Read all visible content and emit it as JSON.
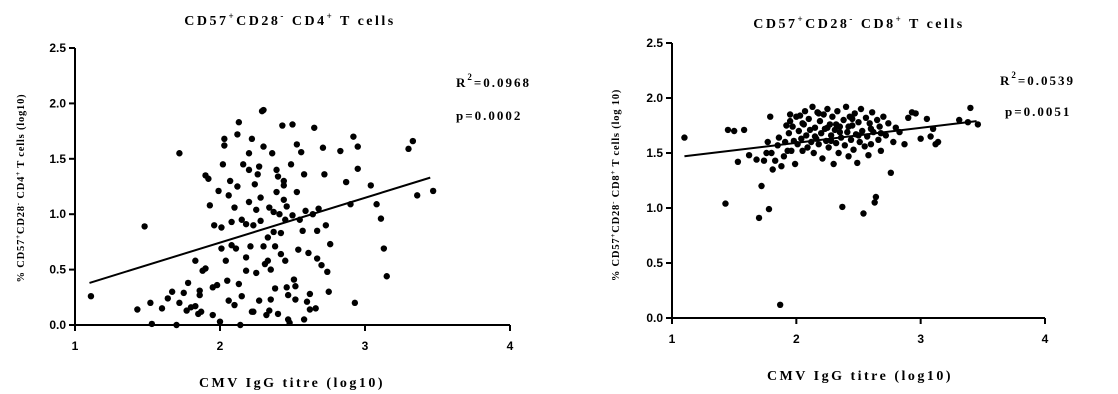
{
  "chart_data": [
    {
      "type": "scatter",
      "title": {
        "a": "CD57",
        "a_sup": "+",
        "b": "CD28",
        "b_sup": "-",
        "c": " CD4",
        "c_sup": "+",
        "d": " T cells"
      },
      "xlabel": "CMV IgG titre (log10)",
      "ylabel": {
        "a": "% CD57",
        "a_sup": "+",
        "b": "CD28",
        "b_sup": "-",
        "c": " CD4",
        "c_sup": "+",
        "d": " T cells (log10)"
      },
      "xlim": [
        1,
        4
      ],
      "ylim": [
        0,
        2.5
      ],
      "xticks": [
        "1",
        "2",
        "3",
        "4"
      ],
      "yticks": [
        "0.0",
        "0.5",
        "1.0",
        "1.5",
        "2.0",
        "2.5"
      ],
      "stats": {
        "r2_label": "R",
        "r2_sup": "2",
        "r2_value": "=0.0968",
        "p_text": "p=0.0002"
      },
      "regression": {
        "x": [
          1.1,
          3.45
        ],
        "y": [
          0.38,
          1.33
        ]
      },
      "points": [
        [
          1.11,
          0.26
        ],
        [
          1.43,
          0.14
        ],
        [
          1.48,
          0.89
        ],
        [
          1.52,
          0.2
        ],
        [
          1.53,
          0.01
        ],
        [
          1.6,
          0.15
        ],
        [
          1.64,
          0.24
        ],
        [
          1.67,
          0.3
        ],
        [
          1.7,
          0.0
        ],
        [
          1.72,
          1.55
        ],
        [
          1.72,
          0.2
        ],
        [
          1.75,
          0.29
        ],
        [
          1.77,
          0.13
        ],
        [
          1.78,
          0.38
        ],
        [
          1.8,
          0.16
        ],
        [
          1.83,
          0.58
        ],
        [
          1.83,
          0.17
        ],
        [
          1.85,
          0.1
        ],
        [
          1.86,
          0.31
        ],
        [
          1.86,
          0.27
        ],
        [
          1.87,
          0.12
        ],
        [
          1.88,
          0.49
        ],
        [
          1.9,
          0.51
        ],
        [
          1.9,
          1.35
        ],
        [
          1.92,
          1.32
        ],
        [
          1.93,
          1.08
        ],
        [
          1.95,
          0.09
        ],
        [
          1.96,
          0.9
        ],
        [
          1.98,
          0.36
        ],
        [
          1.99,
          1.21
        ],
        [
          2.0,
          0.03
        ],
        [
          2.01,
          0.88
        ],
        [
          2.02,
          1.45
        ],
        [
          2.03,
          1.62
        ],
        [
          2.03,
          1.68
        ],
        [
          2.04,
          0.58
        ],
        [
          2.05,
          0.4
        ],
        [
          2.06,
          1.17
        ],
        [
          2.07,
          1.3
        ],
        [
          2.08,
          0.72
        ],
        [
          2.08,
          0.93
        ],
        [
          2.1,
          0.18
        ],
        [
          2.1,
          1.06
        ],
        [
          2.11,
          0.69
        ],
        [
          2.12,
          1.25
        ],
        [
          2.12,
          1.72
        ],
        [
          2.13,
          0.37
        ],
        [
          2.13,
          1.83
        ],
        [
          2.14,
          0.0
        ],
        [
          2.15,
          0.26
        ],
        [
          2.15,
          0.95
        ],
        [
          2.16,
          1.45
        ],
        [
          2.18,
          0.49
        ],
        [
          2.18,
          0.61
        ],
        [
          2.2,
          1.11
        ],
        [
          2.2,
          1.4
        ],
        [
          2.2,
          1.55
        ],
        [
          2.21,
          0.71
        ],
        [
          2.22,
          0.12
        ],
        [
          2.22,
          1.68
        ],
        [
          2.23,
          0.9
        ],
        [
          2.24,
          1.27
        ],
        [
          2.25,
          1.04
        ],
        [
          2.25,
          0.47
        ],
        [
          2.26,
          1.36
        ],
        [
          2.27,
          1.43
        ],
        [
          2.28,
          1.15
        ],
        [
          2.28,
          0.94
        ],
        [
          2.29,
          1.93
        ],
        [
          2.3,
          1.94
        ],
        [
          2.3,
          0.71
        ],
        [
          2.3,
          1.61
        ],
        [
          2.31,
          0.55
        ],
        [
          2.32,
          0.09
        ],
        [
          2.33,
          0.58
        ],
        [
          2.33,
          0.79
        ],
        [
          2.34,
          0.13
        ],
        [
          2.34,
          1.06
        ],
        [
          2.35,
          0.5
        ],
        [
          2.35,
          0.23
        ],
        [
          2.36,
          1.55
        ],
        [
          2.37,
          1.02
        ],
        [
          2.37,
          0.84
        ],
        [
          2.38,
          0.33
        ],
        [
          2.38,
          0.71
        ],
        [
          2.39,
          1.2
        ],
        [
          2.39,
          1.4
        ],
        [
          2.4,
          1.34
        ],
        [
          2.4,
          0.1
        ],
        [
          2.41,
          1.0
        ],
        [
          2.42,
          0.64
        ],
        [
          2.42,
          0.83
        ],
        [
          2.43,
          1.8
        ],
        [
          2.44,
          1.26
        ],
        [
          2.44,
          1.13
        ],
        [
          2.45,
          0.95
        ],
        [
          2.45,
          0.58
        ],
        [
          2.46,
          1.07
        ],
        [
          2.46,
          0.34
        ],
        [
          2.47,
          0.27
        ],
        [
          2.47,
          0.05
        ],
        [
          2.48,
          0.02
        ],
        [
          2.49,
          1.45
        ],
        [
          2.5,
          1.81
        ],
        [
          2.5,
          0.99
        ],
        [
          2.51,
          0.41
        ],
        [
          2.52,
          0.23
        ],
        [
          2.52,
          0.35
        ],
        [
          2.53,
          1.63
        ],
        [
          2.53,
          1.2
        ],
        [
          2.54,
          0.68
        ],
        [
          2.55,
          0.95
        ],
        [
          2.56,
          1.56
        ],
        [
          2.57,
          0.85
        ],
        [
          2.58,
          1.36
        ],
        [
          2.58,
          0.05
        ],
        [
          2.59,
          1.03
        ],
        [
          2.6,
          0.21
        ],
        [
          2.61,
          0.65
        ],
        [
          2.62,
          0.28
        ],
        [
          2.62,
          0.14
        ],
        [
          2.64,
          1.0
        ],
        [
          2.65,
          1.78
        ],
        [
          2.66,
          0.15
        ],
        [
          2.67,
          0.85
        ],
        [
          2.67,
          0.6
        ],
        [
          2.68,
          1.05
        ],
        [
          2.7,
          0.54
        ],
        [
          2.71,
          1.6
        ],
        [
          2.72,
          1.36
        ],
        [
          2.73,
          0.9
        ],
        [
          2.74,
          0.48
        ],
        [
          2.75,
          0.3
        ],
        [
          2.76,
          0.73
        ],
        [
          2.83,
          1.57
        ],
        [
          2.87,
          1.29
        ],
        [
          2.9,
          1.09
        ],
        [
          2.92,
          1.7
        ],
        [
          2.93,
          0.2
        ],
        [
          2.95,
          1.41
        ],
        [
          3.04,
          1.26
        ],
        [
          3.08,
          1.09
        ],
        [
          3.11,
          0.96
        ],
        [
          3.13,
          0.69
        ],
        [
          3.15,
          0.44
        ],
        [
          3.3,
          1.59
        ],
        [
          3.33,
          1.66
        ],
        [
          3.36,
          1.17
        ],
        [
          3.47,
          1.21
        ],
        [
          2.95,
          1.61
        ],
        [
          2.23,
          0.12
        ],
        [
          2.18,
          0.91
        ],
        [
          2.06,
          0.22
        ],
        [
          2.01,
          0.69
        ],
        [
          1.95,
          0.34
        ],
        [
          2.27,
          0.22
        ],
        [
          2.44,
          1.3
        ]
      ]
    },
    {
      "type": "scatter",
      "title": {
        "a": "CD57",
        "a_sup": "+",
        "b": "CD28",
        "b_sup": "-",
        "c": " CD8",
        "c_sup": "+",
        "d": " T cells"
      },
      "xlabel": "CMV IgG titre (log10)",
      "ylabel": {
        "a": "% CD57",
        "a_sup": "+",
        "b": "CD28",
        "b_sup": "-",
        "c": " CD8",
        "c_sup": "+",
        "d": " T cells (log 10)"
      },
      "xlim": [
        1,
        4
      ],
      "ylim": [
        0,
        2.5
      ],
      "xticks": [
        "1",
        "2",
        "3",
        "4"
      ],
      "yticks": [
        "0.0",
        "0.5",
        "1.0",
        "1.5",
        "2.0",
        "2.5"
      ],
      "stats": {
        "r2_label": "R",
        "r2_sup": "2",
        "r2_value": "=0.0539",
        "p_text": "p=0.0051"
      },
      "regression": {
        "x": [
          1.1,
          3.45
        ],
        "y": [
          1.47,
          1.79
        ]
      },
      "points": [
        [
          1.1,
          1.64
        ],
        [
          1.43,
          1.04
        ],
        [
          1.45,
          1.71
        ],
        [
          1.5,
          1.7
        ],
        [
          1.53,
          1.42
        ],
        [
          1.58,
          1.71
        ],
        [
          1.62,
          1.48
        ],
        [
          1.68,
          1.44
        ],
        [
          1.7,
          0.91
        ],
        [
          1.72,
          1.2
        ],
        [
          1.74,
          1.43
        ],
        [
          1.76,
          1.5
        ],
        [
          1.77,
          1.6
        ],
        [
          1.78,
          0.99
        ],
        [
          1.79,
          1.83
        ],
        [
          1.8,
          1.5
        ],
        [
          1.81,
          1.35
        ],
        [
          1.83,
          1.43
        ],
        [
          1.85,
          1.57
        ],
        [
          1.86,
          1.64
        ],
        [
          1.87,
          0.12
        ],
        [
          1.88,
          1.38
        ],
        [
          1.9,
          1.47
        ],
        [
          1.91,
          1.6
        ],
        [
          1.92,
          1.75
        ],
        [
          1.93,
          1.52
        ],
        [
          1.94,
          1.68
        ],
        [
          1.95,
          1.85
        ],
        [
          1.96,
          1.52
        ],
        [
          1.97,
          1.74
        ],
        [
          1.98,
          1.61
        ],
        [
          1.99,
          1.4
        ],
        [
          2.0,
          1.83
        ],
        [
          2.01,
          1.58
        ],
        [
          2.02,
          1.7
        ],
        [
          2.03,
          1.84
        ],
        [
          2.04,
          1.63
        ],
        [
          2.05,
          1.52
        ],
        [
          2.06,
          1.76
        ],
        [
          2.07,
          1.88
        ],
        [
          2.08,
          1.66
        ],
        [
          2.09,
          1.55
        ],
        [
          2.1,
          1.81
        ],
        [
          2.11,
          1.71
        ],
        [
          2.12,
          1.6
        ],
        [
          2.13,
          1.92
        ],
        [
          2.14,
          1.5
        ],
        [
          2.15,
          1.73
        ],
        [
          2.16,
          1.63
        ],
        [
          2.17,
          1.87
        ],
        [
          2.18,
          1.58
        ],
        [
          2.19,
          1.79
        ],
        [
          2.2,
          1.68
        ],
        [
          2.21,
          1.45
        ],
        [
          2.22,
          1.85
        ],
        [
          2.23,
          1.72
        ],
        [
          2.24,
          1.61
        ],
        [
          2.25,
          1.9
        ],
        [
          2.26,
          1.55
        ],
        [
          2.27,
          1.76
        ],
        [
          2.28,
          1.66
        ],
        [
          2.29,
          1.83
        ],
        [
          2.3,
          1.4
        ],
        [
          2.31,
          1.71
        ],
        [
          2.32,
          1.59
        ],
        [
          2.33,
          1.88
        ],
        [
          2.34,
          1.5
        ],
        [
          2.35,
          1.74
        ],
        [
          2.36,
          1.64
        ],
        [
          2.37,
          1.01
        ],
        [
          2.38,
          1.8
        ],
        [
          2.39,
          1.57
        ],
        [
          2.4,
          1.92
        ],
        [
          2.41,
          1.69
        ],
        [
          2.42,
          1.47
        ],
        [
          2.43,
          1.83
        ],
        [
          2.44,
          1.62
        ],
        [
          2.45,
          1.75
        ],
        [
          2.46,
          1.53
        ],
        [
          2.47,
          1.86
        ],
        [
          2.48,
          1.67
        ],
        [
          2.49,
          1.41
        ],
        [
          2.5,
          1.78
        ],
        [
          2.51,
          1.6
        ],
        [
          2.52,
          1.9
        ],
        [
          2.53,
          1.7
        ],
        [
          2.54,
          0.95
        ],
        [
          2.55,
          1.56
        ],
        [
          2.56,
          1.82
        ],
        [
          2.57,
          1.65
        ],
        [
          2.58,
          1.48
        ],
        [
          2.59,
          1.77
        ],
        [
          2.6,
          1.58
        ],
        [
          2.61,
          1.87
        ],
        [
          2.62,
          1.69
        ],
        [
          2.63,
          1.05
        ],
        [
          2.64,
          1.1
        ],
        [
          2.65,
          1.8
        ],
        [
          2.66,
          1.62
        ],
        [
          2.67,
          1.74
        ],
        [
          2.68,
          1.52
        ],
        [
          2.7,
          1.83
        ],
        [
          2.72,
          1.66
        ],
        [
          2.74,
          1.77
        ],
        [
          2.76,
          1.32
        ],
        [
          2.78,
          1.6
        ],
        [
          2.8,
          1.73
        ],
        [
          2.83,
          1.69
        ],
        [
          2.87,
          1.58
        ],
        [
          2.9,
          1.82
        ],
        [
          2.93,
          1.87
        ],
        [
          2.96,
          1.86
        ],
        [
          3.0,
          1.63
        ],
        [
          3.05,
          1.81
        ],
        [
          3.08,
          1.65
        ],
        [
          3.1,
          1.72
        ],
        [
          3.12,
          1.58
        ],
        [
          3.14,
          1.6
        ],
        [
          3.31,
          1.8
        ],
        [
          3.38,
          1.78
        ],
        [
          3.4,
          1.91
        ],
        [
          3.46,
          1.76
        ],
        [
          2.15,
          1.65
        ],
        [
          2.25,
          1.73
        ],
        [
          2.35,
          1.69
        ],
        [
          2.45,
          1.81
        ],
        [
          2.05,
          1.77
        ],
        [
          2.42,
          1.74
        ],
        [
          2.6,
          1.72
        ],
        [
          2.18,
          1.86
        ],
        [
          2.32,
          1.76
        ],
        [
          2.5,
          1.66
        ],
        [
          2.68,
          1.68
        ],
        [
          1.95,
          1.79
        ],
        [
          2.28,
          1.61
        ]
      ]
    }
  ]
}
